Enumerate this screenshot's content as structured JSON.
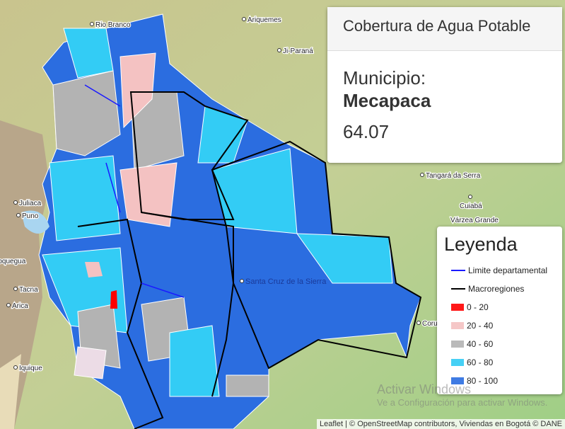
{
  "info_panel": {
    "title": "Cobertura de Agua Potable",
    "label": "Municipio:",
    "name": "Mecapaca",
    "value": 64.07
  },
  "legend": {
    "title": "Leyenda",
    "items": [
      {
        "label": "Limite departamental",
        "color": "#1a1aff",
        "symbol": "line"
      },
      {
        "label": "Macroregiones",
        "color": "#000000",
        "symbol": "line"
      },
      {
        "label": "0 - 20",
        "color": "#ff0000",
        "symbol": "box"
      },
      {
        "label": "20 - 40",
        "color": "#f4c2c2",
        "symbol": "box"
      },
      {
        "label": "40 - 60",
        "color": "#b3b3b3",
        "symbol": "box"
      },
      {
        "label": "60 - 80",
        "color": "#33ccf5",
        "symbol": "box"
      },
      {
        "label": "80 - 100",
        "color": "#2b6de0",
        "symbol": "box"
      }
    ]
  },
  "map_labels": [
    "Rio Branco",
    "Ariquemes",
    "Ji-Paraná",
    "Tangará da Serra",
    "Cuiabá",
    "Várzea Grande",
    "Juliaca",
    "Puno",
    "Moquegua",
    "Tacna",
    "Arica",
    "Iquique",
    "Santa Cruz de la Sierra",
    "Corumbá"
  ],
  "attribution": "Leaflet | © OpenStreetMap contributors, Viviendas en Bogotá © DANE",
  "watermark": {
    "title": "Activar Windows",
    "text": "Ve a Configuración para activar Windows."
  }
}
